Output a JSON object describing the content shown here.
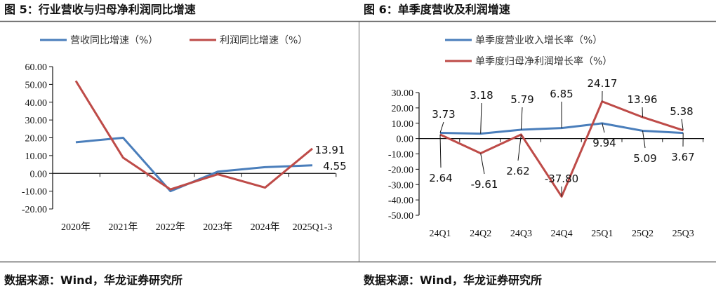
{
  "figures": [
    {
      "title": "图 5：行业营收与归母净利润同比增速",
      "source": "数据来源：Wind，华龙证券研究所"
    },
    {
      "title": "图 6：单季度营收及利润增速",
      "source": "数据来源：Wind，华龙证券研究所"
    }
  ],
  "chart_data": [
    {
      "type": "line",
      "categories": [
        "2020年",
        "2021年",
        "2022年",
        "2023年",
        "2024年",
        "2025Q1-3"
      ],
      "ylim": [
        -20,
        60
      ],
      "yticks": [
        "60.00",
        "50.00",
        "40.00",
        "30.00",
        "20.00",
        "10.00",
        "0.00",
        "-10.00",
        "-20.00"
      ],
      "legend": "top",
      "grid": false,
      "series": [
        {
          "name": "营收同比增速（%）",
          "color": "#4a7ebb",
          "values": [
            17.5,
            20.0,
            -10.0,
            1.0,
            3.5,
            4.55
          ],
          "labels": [
            null,
            null,
            null,
            null,
            null,
            "4.55"
          ]
        },
        {
          "name": "利润同比增速（%）",
          "color": "#be4b48",
          "values": [
            52.0,
            8.8,
            -9.0,
            -0.5,
            -8.0,
            13.91
          ],
          "labels": [
            null,
            null,
            null,
            null,
            null,
            "13.91"
          ]
        }
      ]
    },
    {
      "type": "line",
      "categories": [
        "24Q1",
        "24Q2",
        "24Q3",
        "24Q4",
        "25Q1",
        "25Q2",
        "25Q3"
      ],
      "ylim": [
        -50,
        30
      ],
      "yticks": [
        "30.00",
        "20.00",
        "10.00",
        "0.00",
        "-10.00",
        "-20.00",
        "-30.00",
        "-40.00",
        "-50.00"
      ],
      "legend": "top",
      "grid": false,
      "series": [
        {
          "name": "单季度营业收入增长率（%）",
          "color": "#4a7ebb",
          "values": [
            3.73,
            3.18,
            5.79,
            6.85,
            9.94,
            5.09,
            3.67
          ],
          "labels": [
            "3.73",
            "3.18",
            "5.79",
            "6.85",
            "9.94",
            "5.09",
            "3.67"
          ]
        },
        {
          "name": "单季度归母净利润增长率（%）",
          "color": "#be4b48",
          "values": [
            2.64,
            -9.61,
            2.62,
            -37.8,
            24.17,
            13.96,
            5.38
          ],
          "labels": [
            "2.64",
            "-9.61",
            "2.62",
            "-37.80",
            "24.17",
            "13.96",
            "5.38"
          ]
        }
      ]
    }
  ]
}
